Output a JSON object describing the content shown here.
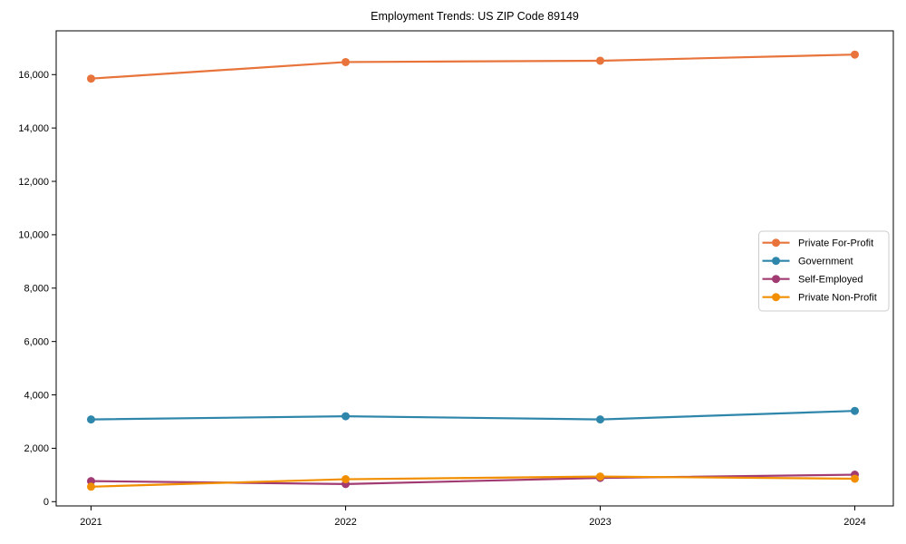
{
  "chart_data": {
    "type": "line",
    "title": "Employment Trends: US ZIP Code 89149",
    "categories": [
      "2021",
      "2022",
      "2023",
      "2024"
    ],
    "series": [
      {
        "name": "Private For-Profit",
        "color": "#E8743B",
        "values": [
          15850,
          16470,
          16520,
          16750
        ]
      },
      {
        "name": "Government",
        "color": "#2E86AB",
        "values": [
          3080,
          3200,
          3080,
          3400
        ]
      },
      {
        "name": "Self-Employed",
        "color": "#A23B72",
        "values": [
          770,
          660,
          890,
          1010
        ]
      },
      {
        "name": "Private Non-Profit",
        "color": "#F18F01",
        "values": [
          560,
          840,
          940,
          860
        ]
      }
    ],
    "yticks": [
      0,
      2000,
      4000,
      6000,
      8000,
      10000,
      12000,
      14000,
      16000
    ],
    "ytick_labels": [
      "0",
      "2,000",
      "4,000",
      "6,000",
      "8,000",
      "10,000",
      "12,000",
      "14,000",
      "16,000"
    ],
    "ylim": [
      -160,
      17640
    ],
    "xlabel": "",
    "ylabel": "",
    "grid": false,
    "legend_position": "center-right",
    "marker": "circle",
    "axis_color": "#000000",
    "background_color": "#ffffff",
    "legend_border_color": "#cccccc"
  }
}
